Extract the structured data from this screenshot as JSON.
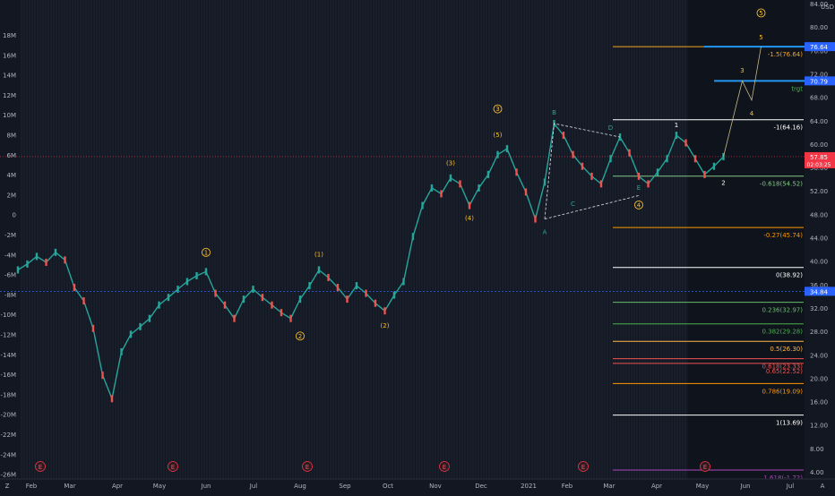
{
  "chart_data": {
    "type": "line",
    "title": "",
    "currency": "USD",
    "price_axis": {
      "min": 4,
      "max": 84,
      "ticks": [
        "84.00",
        "80.00",
        "76.00",
        "72.00",
        "68.00",
        "64.00",
        "60.00",
        "56.00",
        "52.00",
        "48.00",
        "44.00",
        "40.00",
        "36.00",
        "32.00",
        "28.00",
        "24.00",
        "20.00",
        "16.00",
        "12.00",
        "8.00",
        "4.00"
      ],
      "badges": [
        {
          "label": "76.64",
          "value": 76.64,
          "color": "#2962ff"
        },
        {
          "label": "70.79",
          "value": 70.79,
          "color": "#2962ff"
        },
        {
          "label": "57.85",
          "value": 57.85,
          "sub": "02:03:25",
          "color": "#f23645"
        },
        {
          "label": "34.84",
          "value": 34.84,
          "color": "#2962ff"
        }
      ]
    },
    "left_axis": {
      "ticks": [
        "18M",
        "16M",
        "14M",
        "12M",
        "10M",
        "8M",
        "6M",
        "4M",
        "2M",
        "0",
        "-2M",
        "-4M",
        "-6M",
        "-8M",
        "-10M",
        "-12M",
        "-14M",
        "-16M",
        "-18M",
        "-20M",
        "-22M",
        "-24M",
        "-26M",
        "-28M"
      ]
    },
    "time_axis": {
      "ticks": [
        "Feb",
        "Mar",
        "Apr",
        "May",
        "Jun",
        "Jul",
        "Aug",
        "Sep",
        "Oct",
        "Nov",
        "Dec",
        "2021",
        "Feb",
        "Mar",
        "Apr",
        "May",
        "Jun",
        "Jul"
      ]
    },
    "earnings_markers": [
      "E",
      "E",
      "E",
      "E",
      "E",
      "E"
    ],
    "price_series": [
      [
        0,
        38.5
      ],
      [
        1,
        39.5
      ],
      [
        2,
        40.8
      ],
      [
        3,
        39.8
      ],
      [
        4,
        41.5
      ],
      [
        5,
        40.2
      ],
      [
        6,
        35.5
      ],
      [
        7,
        33.2
      ],
      [
        8,
        28.5
      ],
      [
        9,
        20.5
      ],
      [
        10,
        16.5
      ],
      [
        11,
        24.5
      ],
      [
        12,
        27.5
      ],
      [
        13,
        28.8
      ],
      [
        14,
        30.2
      ],
      [
        15,
        32.5
      ],
      [
        16,
        33.8
      ],
      [
        17,
        35.2
      ],
      [
        18,
        36.5
      ],
      [
        19,
        37.5
      ],
      [
        20,
        38.2
      ],
      [
        21,
        34.5
      ],
      [
        22,
        32.5
      ],
      [
        23,
        30.2
      ],
      [
        24,
        33.5
      ],
      [
        25,
        35.2
      ],
      [
        26,
        33.8
      ],
      [
        27,
        32.5
      ],
      [
        28,
        31.2
      ],
      [
        29,
        30.2
      ],
      [
        30,
        33.5
      ],
      [
        31,
        35.8
      ],
      [
        32,
        38.5
      ],
      [
        33,
        37.2
      ],
      [
        34,
        35.5
      ],
      [
        35,
        33.5
      ],
      [
        36,
        35.8
      ],
      [
        37,
        34.5
      ],
      [
        38,
        32.8
      ],
      [
        39,
        31.5
      ],
      [
        40,
        34.2
      ],
      [
        41,
        36.5
      ],
      [
        42,
        44.2
      ],
      [
        43,
        49.5
      ],
      [
        44,
        52.5
      ],
      [
        45,
        51.5
      ],
      [
        46,
        54.2
      ],
      [
        47,
        53.2
      ],
      [
        48,
        49.5
      ],
      [
        49,
        52.5
      ],
      [
        50,
        54.8
      ],
      [
        51,
        58.2
      ],
      [
        52,
        59.2
      ],
      [
        53,
        55.2
      ],
      [
        54,
        51.8
      ],
      [
        55,
        47.2
      ],
      [
        56,
        53.5
      ],
      [
        57,
        63.5
      ],
      [
        58,
        61.5
      ],
      [
        59,
        58.2
      ],
      [
        60,
        56.2
      ],
      [
        61,
        54.5
      ],
      [
        62,
        53.2
      ],
      [
        63,
        57.5
      ],
      [
        64,
        61.2
      ],
      [
        65,
        58.5
      ],
      [
        66,
        54.5
      ],
      [
        67,
        53.2
      ],
      [
        68,
        55.2
      ],
      [
        69,
        57.5
      ],
      [
        70,
        61.5
      ],
      [
        71,
        60.2
      ],
      [
        72,
        57.5
      ],
      [
        73,
        54.8
      ],
      [
        74,
        56.2
      ],
      [
        75,
        57.85
      ]
    ],
    "projection": [
      [
        75,
        57.85
      ],
      [
        77,
        70.79
      ],
      [
        78,
        67.5
      ],
      [
        79,
        76.64
      ]
    ],
    "wedge": [
      [
        [
          56,
          47.2
        ],
        [
          57,
          63.5
        ],
        [
          64,
          61.2
        ]
      ],
      [
        [
          56,
          47.2
        ],
        [
          66,
          51.2
        ]
      ]
    ],
    "fib_levels": [
      {
        "label": "-1.5(76.64)",
        "value": 76.64,
        "color": "#f5a623"
      },
      {
        "label": "trgt",
        "value": 70.79,
        "color": "#4caf50"
      },
      {
        "label": "-1(64.16)",
        "value": 64.16,
        "color": "#ffffff"
      },
      {
        "label": "-0.618(54.52)",
        "value": 54.52,
        "color": "#81c784"
      },
      {
        "label": "-0.27(45.74)",
        "value": 45.74,
        "color": "#ff9800"
      },
      {
        "label": "0(38.92)",
        "value": 38.92,
        "color": "#ffffff"
      },
      {
        "label": "0.236(32.97)",
        "value": 32.97,
        "color": "#66bb6a"
      },
      {
        "label": "0.382(29.28)",
        "value": 29.28,
        "color": "#4caf50"
      },
      {
        "label": "0.5(26.30)",
        "value": 26.3,
        "color": "#ffb74d"
      },
      {
        "label": "0.618(23.33)",
        "value": 23.33,
        "color": "#ef5350"
      },
      {
        "label": "0.65(22.52)",
        "value": 22.52,
        "color": "#ef5350"
      },
      {
        "label": "0.786(19.09)",
        "value": 19.09,
        "color": "#ff9800"
      },
      {
        "label": "1(13.69)",
        "value": 13.69,
        "color": "#ffffff"
      },
      {
        "label": "1.618(-1.72)",
        "value": 4.3,
        "color": "#ab47bc"
      }
    ],
    "wave_labels": [
      {
        "text": "1",
        "circle": true,
        "at": [
          20,
          41.5
        ],
        "color": "#fbc02d"
      },
      {
        "text": "2",
        "circle": true,
        "at": [
          30,
          27.2
        ],
        "color": "#fbc02d"
      },
      {
        "text": "(1)",
        "circle": false,
        "at": [
          32,
          41.2
        ],
        "color": "#fbc02d"
      },
      {
        "text": "(2)",
        "circle": false,
        "at": [
          39,
          29.0
        ],
        "color": "#fbc02d"
      },
      {
        "text": "(3)",
        "circle": false,
        "at": [
          46,
          56.8
        ],
        "color": "#fbc02d"
      },
      {
        "text": "(4)",
        "circle": false,
        "at": [
          48,
          47.4
        ],
        "color": "#fbc02d"
      },
      {
        "text": "(5)",
        "circle": false,
        "at": [
          51,
          61.6
        ],
        "color": "#fbc02d"
      },
      {
        "text": "3",
        "circle": true,
        "at": [
          51,
          66.0
        ],
        "color": "#fbc02d"
      },
      {
        "text": "A",
        "circle": false,
        "at": [
          56,
          45.0
        ],
        "color": "#26a69a"
      },
      {
        "text": "B",
        "circle": false,
        "at": [
          57,
          65.4
        ],
        "color": "#26a69a"
      },
      {
        "text": "C",
        "circle": false,
        "at": [
          59,
          49.8
        ],
        "color": "#26a69a"
      },
      {
        "text": "D",
        "circle": false,
        "at": [
          63,
          62.8
        ],
        "color": "#26a69a"
      },
      {
        "text": "E",
        "circle": false,
        "at": [
          66,
          52.6
        ],
        "color": "#26a69a"
      },
      {
        "text": "4",
        "circle": true,
        "at": [
          66,
          49.6
        ],
        "color": "#fbc02d"
      },
      {
        "text": "1",
        "circle": false,
        "at": [
          70,
          63.3
        ],
        "color": "#ffffff"
      },
      {
        "text": "2",
        "circle": false,
        "at": [
          75,
          53.4
        ],
        "color": "#ffffff"
      },
      {
        "text": "3",
        "circle": false,
        "at": [
          77,
          72.6
        ],
        "color": "#fbc02d"
      },
      {
        "text": "4",
        "circle": false,
        "at": [
          78,
          65.3
        ],
        "color": "#fbc02d"
      },
      {
        "text": "5",
        "circle": false,
        "at": [
          79,
          78.3
        ],
        "color": "#fbc02d"
      },
      {
        "text": "5",
        "circle": true,
        "at": [
          79,
          82.4
        ],
        "color": "#fbc02d"
      }
    ],
    "bottom_corner_labels": [
      "Z",
      "A"
    ]
  }
}
